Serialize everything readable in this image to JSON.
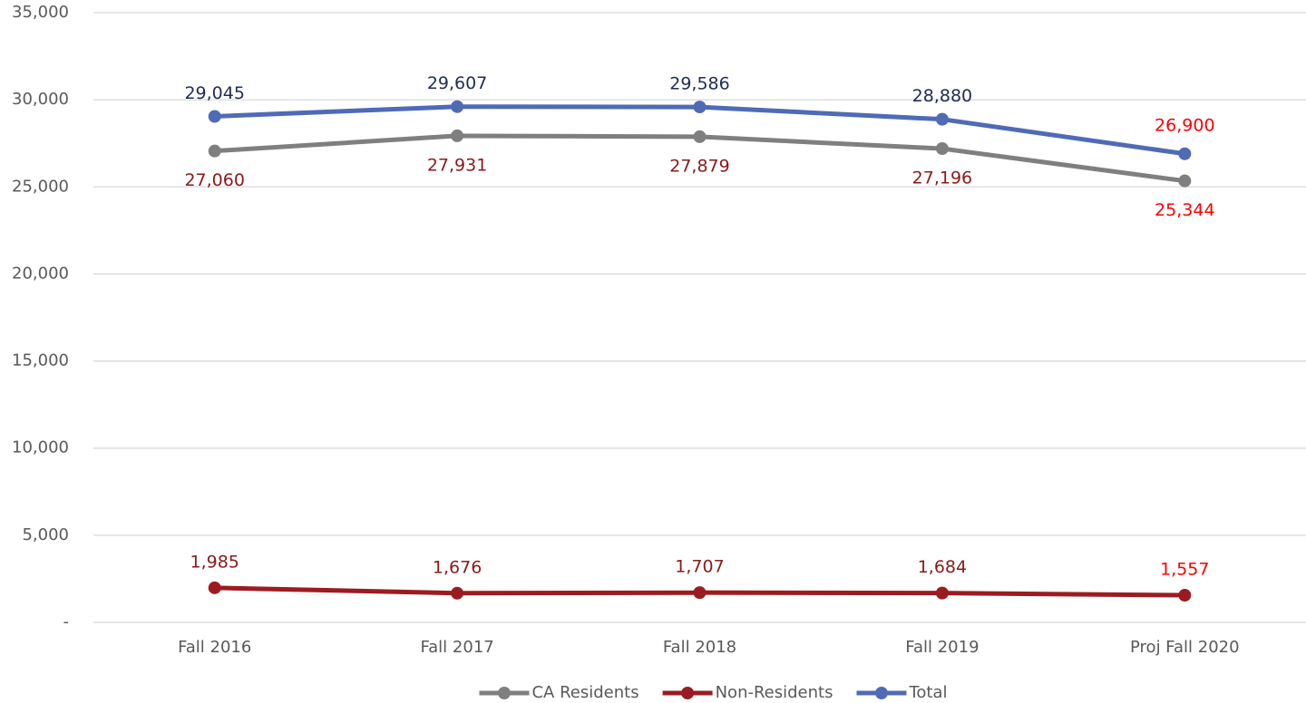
{
  "chart_data": {
    "type": "line",
    "categories": [
      "Fall 2016",
      "Fall 2017",
      "Fall 2018",
      "Fall 2019",
      "Proj Fall 2020"
    ],
    "series": [
      {
        "name": "CA Residents",
        "color": "#7f7f7f",
        "label_color": "#8b1a1a",
        "label_side": "below",
        "values": [
          27060,
          27931,
          27879,
          27196,
          25344
        ],
        "value_labels": [
          "27,060",
          "27,931",
          "27,879",
          "27,196",
          "25,344"
        ]
      },
      {
        "name": "Non-Residents",
        "color": "#9b1c20",
        "label_color": "#8b1a1a",
        "label_side": "above",
        "values": [
          1985,
          1676,
          1707,
          1684,
          1557
        ],
        "value_labels": [
          "1,985",
          "1,676",
          "1,707",
          "1,684",
          "1,557"
        ]
      },
      {
        "name": "Total",
        "color": "#4f6bb5",
        "label_color": "#1f2d50",
        "label_side": "above",
        "values": [
          29045,
          29607,
          29586,
          28880,
          26900
        ],
        "value_labels": [
          "29,045",
          "29,607",
          "29,586",
          "28,880",
          "26,900"
        ]
      }
    ],
    "projection_label_color": "#ff0000",
    "ylim": [
      0,
      35000
    ],
    "yticks": [
      {
        "value": 0,
        "label": "-"
      },
      {
        "value": 5000,
        "label": "5,000"
      },
      {
        "value": 10000,
        "label": "10,000"
      },
      {
        "value": 15000,
        "label": "15,000"
      },
      {
        "value": 20000,
        "label": "20,000"
      },
      {
        "value": 25000,
        "label": "25,000"
      },
      {
        "value": 30000,
        "label": "30,000"
      },
      {
        "value": 35000,
        "label": "35,000"
      }
    ],
    "grid": true,
    "legend": "bottom"
  }
}
